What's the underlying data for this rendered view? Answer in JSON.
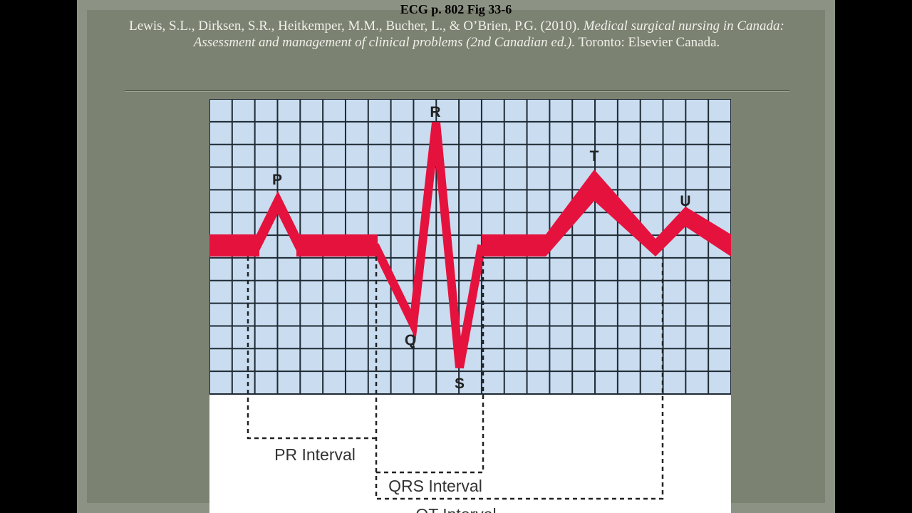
{
  "slide": {
    "title": "ECG p. 802 Fig 33-6",
    "citation": {
      "authors": "Lewis, S.L., Dirksen, S.R., Heitkemper, M.M., Bucher, L., & O’Brien, P.G. (2010).",
      "book_title": "Medical surgical nursing in Canada: Assessment and management of clinical problems (2nd Canadian ed.).",
      "publisher": "Toronto: Elsevier Canada."
    }
  },
  "figure": {
    "waves": [
      "P",
      "Q",
      "R",
      "S",
      "T",
      "U"
    ],
    "intervals": [
      "PR Interval",
      "QRS Interval",
      "QT Interval"
    ]
  }
}
